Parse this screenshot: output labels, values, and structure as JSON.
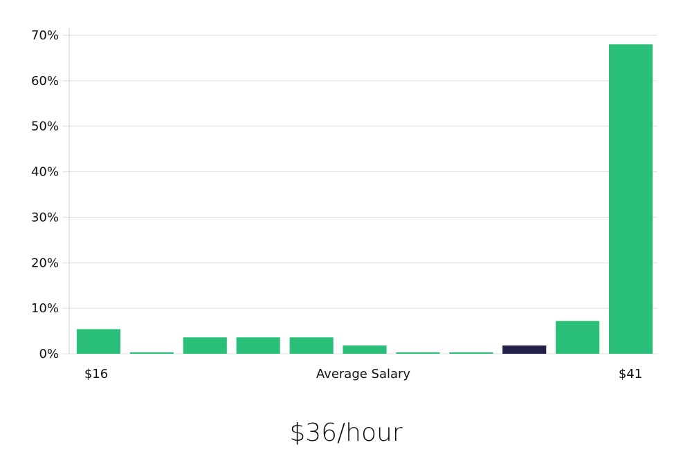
{
  "chart_data": {
    "type": "bar",
    "title": "",
    "xlabel": "Average Salary",
    "ylabel": "",
    "ylim": [
      0,
      70
    ],
    "y_ticks": [
      0,
      10,
      20,
      30,
      40,
      50,
      60,
      70
    ],
    "y_tick_suffix": "%",
    "grid": true,
    "x_min_label": "$16",
    "x_max_label": "$41",
    "values": [
      5.4,
      0.2,
      3.6,
      3.6,
      3.6,
      1.8,
      0.2,
      0.2,
      1.8,
      7.2,
      68
    ],
    "highlight_index": 8,
    "colors": {
      "bar": "#2abf78",
      "highlight": "#23214a",
      "grid": "#dddddd",
      "axis": "#cccccc"
    }
  },
  "summary": {
    "value": "$36/hour"
  }
}
